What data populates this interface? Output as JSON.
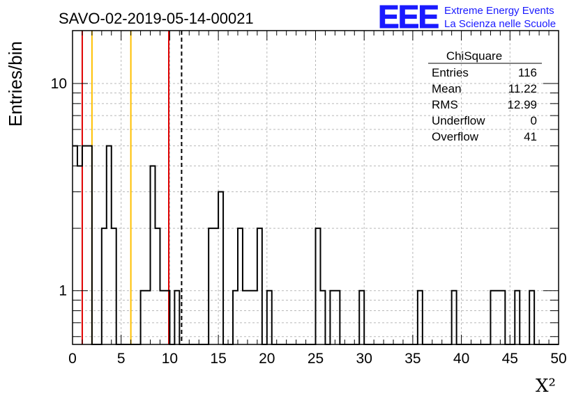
{
  "chart_data": {
    "type": "histogram",
    "title": "SAVO-02-2019-05-14-00021",
    "xlabel": "X²",
    "ylabel": "Entries/bin",
    "xlim": [
      0,
      50
    ],
    "ylim": [
      0.55,
      18
    ],
    "yscale": "log",
    "bin_width": 0.5,
    "grid": true,
    "x_ticks": [
      "0",
      "5",
      "10",
      "15",
      "20",
      "25",
      "30",
      "35",
      "40",
      "45",
      "50"
    ],
    "y_ticks": [
      "1",
      "10"
    ],
    "bins": [
      {
        "x": 0.0,
        "count": 5
      },
      {
        "x": 0.5,
        "count": 4
      },
      {
        "x": 1.0,
        "count": 5
      },
      {
        "x": 1.5,
        "count": 5
      },
      {
        "x": 3.0,
        "count": 2
      },
      {
        "x": 3.5,
        "count": 5
      },
      {
        "x": 4.0,
        "count": 2
      },
      {
        "x": 7.0,
        "count": 1
      },
      {
        "x": 7.5,
        "count": 1
      },
      {
        "x": 8.0,
        "count": 4
      },
      {
        "x": 8.5,
        "count": 2
      },
      {
        "x": 9.0,
        "count": 1
      },
      {
        "x": 9.5,
        "count": 1
      },
      {
        "x": 10.5,
        "count": 1
      },
      {
        "x": 14.0,
        "count": 2
      },
      {
        "x": 14.5,
        "count": 2
      },
      {
        "x": 15.0,
        "count": 3
      },
      {
        "x": 16.5,
        "count": 1
      },
      {
        "x": 17.0,
        "count": 2
      },
      {
        "x": 17.5,
        "count": 1
      },
      {
        "x": 18.0,
        "count": 1
      },
      {
        "x": 18.5,
        "count": 1
      },
      {
        "x": 19.0,
        "count": 2
      },
      {
        "x": 20.0,
        "count": 1
      },
      {
        "x": 25.0,
        "count": 2
      },
      {
        "x": 25.5,
        "count": 1
      },
      {
        "x": 26.5,
        "count": 1
      },
      {
        "x": 27.0,
        "count": 1
      },
      {
        "x": 29.5,
        "count": 1
      },
      {
        "x": 35.5,
        "count": 1
      },
      {
        "x": 39.0,
        "count": 1
      },
      {
        "x": 43.0,
        "count": 1
      },
      {
        "x": 43.5,
        "count": 1
      },
      {
        "x": 44.0,
        "count": 1
      },
      {
        "x": 45.5,
        "count": 1
      },
      {
        "x": 47.0,
        "count": 1
      }
    ],
    "reference_lines": [
      {
        "x": 1.0,
        "color": "#e00000",
        "style": "solid"
      },
      {
        "x": 2.0,
        "color": "#ffc000",
        "style": "solid"
      },
      {
        "x": 6.0,
        "color": "#ffc000",
        "style": "solid"
      },
      {
        "x": 9.9,
        "color": "#e00000",
        "style": "solid"
      },
      {
        "x": 11.22,
        "color": "#000000",
        "style": "dashed"
      }
    ],
    "stats_box": {
      "title": "ChiSquare",
      "rows": [
        {
          "label": "Entries",
          "value": "116"
        },
        {
          "label": "Mean",
          "value": "11.22"
        },
        {
          "label": "RMS",
          "value": "12.99"
        },
        {
          "label": "Underflow",
          "value": "0"
        },
        {
          "label": "Overflow",
          "value": "41"
        }
      ]
    }
  },
  "logo": {
    "text": "EEE",
    "line1": "Extreme Energy Events",
    "line2": "La Scienza nelle Scuole",
    "color": "#1a1aff"
  }
}
